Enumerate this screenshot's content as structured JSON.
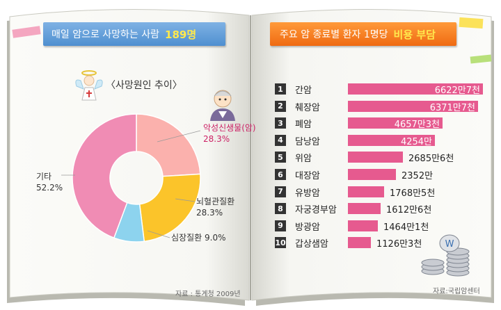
{
  "left_panel": {
    "title_prefix": "매일 암으로 사망하는 사람",
    "title_highlight": "189명",
    "subtitle": "〈사망원인 추이〉",
    "source": "자료 : 통계청 2009년"
  },
  "right_panel": {
    "title_prefix": "주요 암 종료별 환자 1명당",
    "title_highlight": "비용 부담",
    "source": "자료:국립암센터"
  },
  "colors": {
    "pie_pink": "#f08cb4",
    "pie_salmon": "#fbb1ad",
    "pie_yellow": "#fbc42a",
    "pie_blue": "#8dd3ee",
    "bar": "#e65a8f",
    "title_blue": "#5b9bd8",
    "title_orange": "#f77a1e"
  },
  "chart_data": [
    {
      "type": "pie",
      "slices": [
        {
          "label": "악성신생물(암)",
          "value_text": "28.3%",
          "value": 28.3
        },
        {
          "label": "뇌혈관질환",
          "value_text": "28.3%",
          "value": 28.3
        },
        {
          "label": "심장질환",
          "value_text": "9.0%",
          "value": 9.0
        },
        {
          "label": "기타",
          "value_text": "52.2%",
          "value": 52.2
        }
      ]
    },
    {
      "type": "bar",
      "rows": [
        {
          "rank": "1",
          "name": "간암",
          "value": 6622.7,
          "label": "6622만7천"
        },
        {
          "rank": "2",
          "name": "췌장암",
          "value": 6371.7,
          "label": "6371만7천"
        },
        {
          "rank": "3",
          "name": "폐암",
          "value": 4657.3,
          "label": "4657만3천"
        },
        {
          "rank": "4",
          "name": "담낭암",
          "value": 4254,
          "label": "4254만"
        },
        {
          "rank": "5",
          "name": "위암",
          "value": 2685.6,
          "label": "2685만6천"
        },
        {
          "rank": "6",
          "name": "대장암",
          "value": 2352,
          "label": "2352만"
        },
        {
          "rank": "7",
          "name": "유방암",
          "value": 1768.5,
          "label": "1768만5천"
        },
        {
          "rank": "8",
          "name": "자궁경부암",
          "value": 1612.6,
          "label": "1612만6천"
        },
        {
          "rank": "9",
          "name": "방광암",
          "value": 1464.1,
          "label": "1464만1천"
        },
        {
          "rank": "10",
          "name": "갑상샘암",
          "value": 1126.3,
          "label": "1126만3천"
        }
      ]
    }
  ]
}
